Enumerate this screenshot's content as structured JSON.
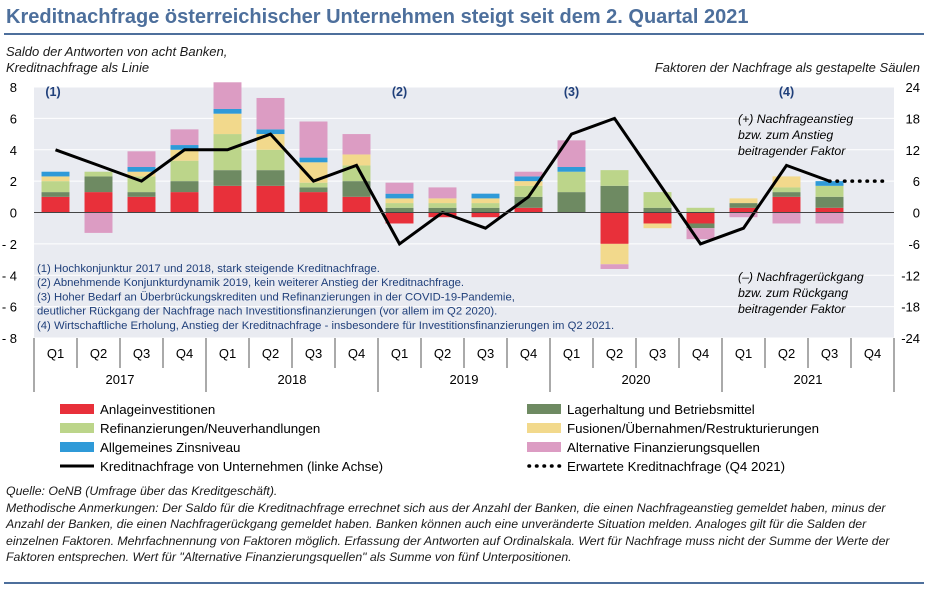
{
  "title": "Kreditnachfrage österreichischer Unternehmen steigt seit dem 2. Quartal 2021",
  "subtitle_left": [
    "Saldo der Antworten von acht Banken,",
    "Kreditnachfrage als Linie"
  ],
  "subtitle_right": "Faktoren der Nachfrage als gestapelte Säulen",
  "source": "Quelle: OeNB (Umfrage über das Kreditgeschäft).",
  "method_notes": "Methodische Anmerkungen: Der Saldo für die Kreditnachfrage errechnet sich aus der Anzahl der Banken, die einen Nachfrageanstieg gemeldet haben, minus der Anzahl der Banken, die einen Nachfragerückgang gemeldet haben. Banken können auch eine unveränderte Situation melden. Analoges gilt für die Salden der einzelnen Faktoren. Mehrfachnennung von Faktoren möglich. Erfassung der Antworten auf Ordinalskala. Wert für Nachfrage muss nicht der Summe der Werte der Faktoren entsprechen. Wert für \"Alternative Finanzierungsquellen\" als Summe von fünf Unterpositionen.",
  "plus_note": [
    "(+) Nachfrageanstieg",
    "bzw. zum Anstieg",
    "beitragender Faktor"
  ],
  "minus_note": [
    "(–) Nachfragerückgang",
    "bzw. zum Rückgang",
    "beitragender Faktor"
  ],
  "phase_markers": [
    "(1)",
    "(2)",
    "(3)",
    "(4)"
  ],
  "footnotes": [
    "(1) Hochkonjunktur  2017 und 2018, stark steigende Kreditnachfrage.",
    "(2) Abnehmende  Konjunkturdynamik  2019, kein weiterer Anstieg der Kreditnachfrage.",
    "(3) Hoher Bedarf an Überbrückungskrediten und Refinanzierungen in der COVID-19-Pandemie,",
    "     deutlicher Rückgang der Nachfrage nach Investitionsfinanzierungen (vor allem im Q2 2020).",
    "(4) Wirtschaftliche Erholung, Anstieg der Kreditnachfrage - insbesondere für Investitionsfinanzierungen im Q2 2021."
  ],
  "colors": {
    "accent": "#4d6f9c",
    "Anlageinvestitionen": "#e8303a",
    "Lagerhaltung und Betriebsmittel": "#6e8a62",
    "Refinanzierungen/Neuverhandlungen": "#bcd58a",
    "Fusionen/Übernahmen/Restrukturierungen": "#f2d98c",
    "Allgemeines Zinsniveau": "#2f9ad8",
    "Alternative Finanzierungsquellen": "#dc9cc3",
    "line": "#000000",
    "plot_bg": "#e9ebf1"
  },
  "chart_data": {
    "type": "bar",
    "stacked": true,
    "categories": [
      "Q1 2017",
      "Q2 2017",
      "Q3 2017",
      "Q4 2017",
      "Q1 2018",
      "Q2 2018",
      "Q3 2018",
      "Q4 2018",
      "Q1 2019",
      "Q2 2019",
      "Q3 2019",
      "Q4 2019",
      "Q1 2020",
      "Q2 2020",
      "Q3 2020",
      "Q4 2020",
      "Q1 2021",
      "Q2 2021",
      "Q3 2021",
      "Q4 2021"
    ],
    "quarter_labels": [
      "Q1",
      "Q2",
      "Q3",
      "Q4",
      "Q1",
      "Q2",
      "Q3",
      "Q4",
      "Q1",
      "Q2",
      "Q3",
      "Q4",
      "Q1",
      "Q2",
      "Q3",
      "Q4",
      "Q1",
      "Q2",
      "Q3",
      "Q4"
    ],
    "years": [
      "2017",
      "2018",
      "2019",
      "2020",
      "2021"
    ],
    "ylim_left": [
      -8,
      8
    ],
    "yticks_left": [
      "8",
      "6",
      "4",
      "2",
      "0",
      "- 2",
      "- 4",
      "- 6",
      "- 8"
    ],
    "ylim_right": [
      -24,
      24
    ],
    "yticks_right": [
      "24",
      "18",
      "12",
      "6",
      "0",
      "-6",
      "-12",
      "-18",
      "-24"
    ],
    "series": [
      {
        "name": "Anlageinvestitionen",
        "values": [
          1.0,
          1.3,
          1.0,
          1.3,
          1.7,
          1.7,
          1.3,
          1.0,
          -0.7,
          -0.3,
          -0.3,
          0.3,
          0.0,
          -2.0,
          -0.7,
          -0.7,
          0.3,
          1.0,
          0.3,
          null
        ]
      },
      {
        "name": "Lagerhaltung und Betriebsmittel",
        "values": [
          0.3,
          1.0,
          0.3,
          0.7,
          1.0,
          1.0,
          0.3,
          1.0,
          0.3,
          0.3,
          0.3,
          0.7,
          1.3,
          1.7,
          0.3,
          -0.3,
          0.3,
          0.3,
          0.7,
          null
        ]
      },
      {
        "name": "Refinanzierungen/Neuverhandlungen",
        "values": [
          0.7,
          0.3,
          1.0,
          1.3,
          2.3,
          1.3,
          0.3,
          1.0,
          0.3,
          0.3,
          0.3,
          0.7,
          1.3,
          1.0,
          1.0,
          0.3,
          0.0,
          0.3,
          0.7,
          null
        ]
      },
      {
        "name": "Fusionen/Übernahmen/Restrukturierungen",
        "values": [
          0.3,
          0.0,
          0.3,
          0.7,
          1.3,
          1.0,
          1.3,
          0.7,
          0.3,
          0.3,
          0.3,
          0.3,
          0.0,
          -1.3,
          -0.3,
          0.0,
          0.3,
          0.7,
          0.0,
          null
        ]
      },
      {
        "name": "Allgemeines Zinsniveau",
        "values": [
          0.3,
          0.0,
          0.3,
          0.3,
          0.3,
          0.3,
          0.3,
          0.0,
          0.3,
          0.0,
          0.3,
          0.3,
          0.3,
          0.0,
          0.0,
          0.0,
          0.0,
          0.0,
          0.3,
          null
        ]
      },
      {
        "name": "Alternative Finanzierungsquellen",
        "values": [
          0.0,
          -1.3,
          1.0,
          1.0,
          1.7,
          2.0,
          2.3,
          1.3,
          0.7,
          0.7,
          0.0,
          0.3,
          1.7,
          -0.3,
          0.0,
          -0.7,
          -0.3,
          -0.7,
          -0.7,
          null
        ]
      }
    ],
    "line": {
      "name": "Kreditnachfrage von Unternehmen (linke Achse)",
      "axis": "left",
      "values": [
        4.0,
        3.0,
        2.0,
        4.0,
        4.0,
        5.0,
        2.0,
        3.0,
        -2.0,
        0.0,
        -1.0,
        1.0,
        5.0,
        6.0,
        2.0,
        -2.0,
        -1.0,
        3.0,
        2.0,
        null
      ]
    },
    "expected_line": {
      "name": "Erwartete Kreditnachfrage (Q4 2021)",
      "from_index": 18,
      "values": [
        2.0,
        2.0
      ]
    },
    "legend": [
      {
        "name": "Anlageinvestitionen",
        "kind": "bar"
      },
      {
        "name": "Lagerhaltung und Betriebsmittel",
        "kind": "bar"
      },
      {
        "name": "Refinanzierungen/Neuverhandlungen",
        "kind": "bar"
      },
      {
        "name": "Fusionen/Übernahmen/Restrukturierungen",
        "kind": "bar"
      },
      {
        "name": "Allgemeines Zinsniveau",
        "kind": "bar"
      },
      {
        "name": "Alternative Finanzierungsquellen",
        "kind": "bar"
      },
      {
        "name": "Kreditnachfrage von Unternehmen (linke Achse)",
        "kind": "line"
      },
      {
        "name": "Erwartete Kreditnachfrage (Q4 2021)",
        "kind": "dotted"
      }
    ]
  }
}
